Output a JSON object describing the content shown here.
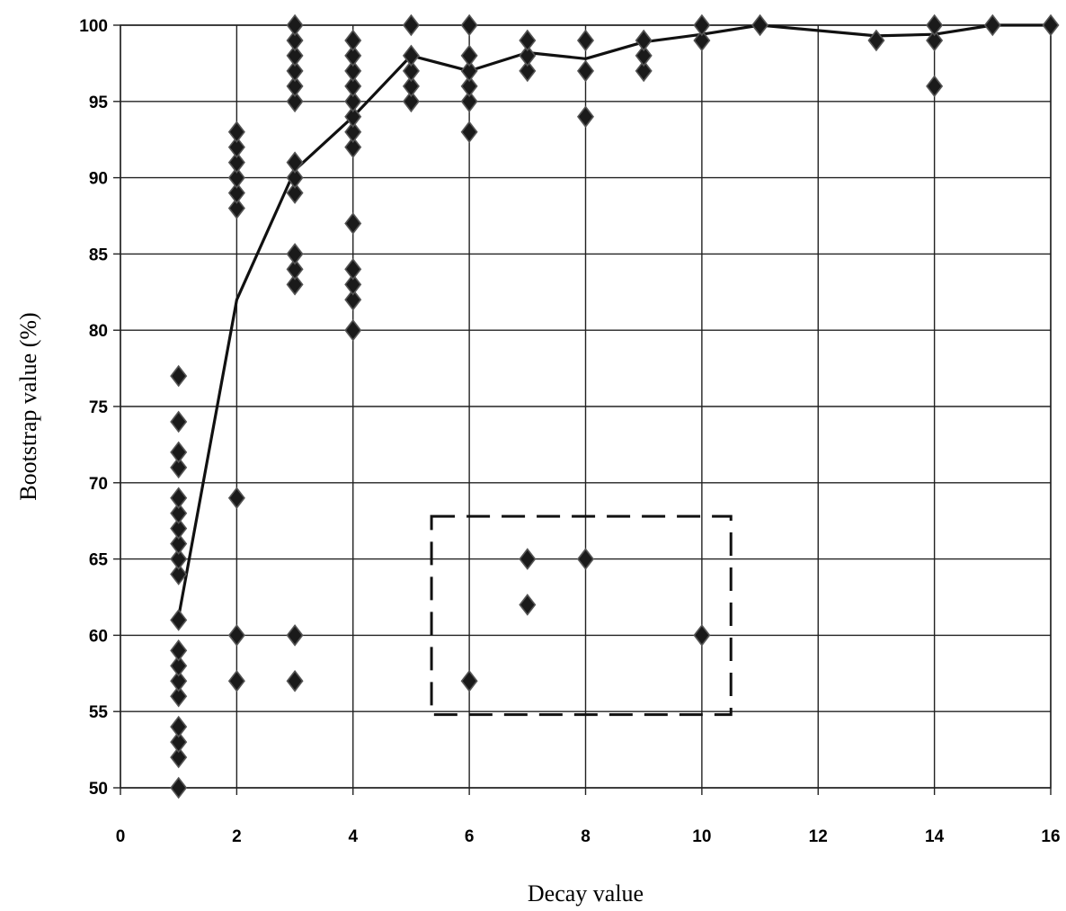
{
  "chart_data": {
    "type": "scatter",
    "title": "",
    "xlabel": "Decay value",
    "ylabel": "Bootstrap value (%)",
    "xlim": [
      0,
      16
    ],
    "ylim": [
      50,
      100
    ],
    "x_ticks": [
      "0",
      "2",
      "4",
      "6",
      "8",
      "10",
      "12",
      "14",
      "16"
    ],
    "y_ticks": [
      "50",
      "55",
      "60",
      "65",
      "70",
      "75",
      "80",
      "85",
      "90",
      "95",
      "100"
    ],
    "grid": true,
    "series": [
      {
        "kind": "scatter",
        "marker": "diamond",
        "color": "#1a1a1a",
        "points": [
          [
            1,
            50
          ],
          [
            1,
            52
          ],
          [
            1,
            53
          ],
          [
            1,
            54
          ],
          [
            1,
            56
          ],
          [
            1,
            57
          ],
          [
            1,
            58
          ],
          [
            1,
            59
          ],
          [
            1,
            61
          ],
          [
            1,
            64
          ],
          [
            1,
            65
          ],
          [
            1,
            66
          ],
          [
            1,
            67
          ],
          [
            1,
            68
          ],
          [
            1,
            69
          ],
          [
            1,
            71
          ],
          [
            1,
            72
          ],
          [
            1,
            74
          ],
          [
            1,
            77
          ],
          [
            2,
            57
          ],
          [
            2,
            60
          ],
          [
            2,
            69
          ],
          [
            2,
            88
          ],
          [
            2,
            89
          ],
          [
            2,
            90
          ],
          [
            2,
            91
          ],
          [
            2,
            92
          ],
          [
            2,
            93
          ],
          [
            3,
            57
          ],
          [
            3,
            60
          ],
          [
            3,
            83
          ],
          [
            3,
            84
          ],
          [
            3,
            85
          ],
          [
            3,
            89
          ],
          [
            3,
            90
          ],
          [
            3,
            91
          ],
          [
            3,
            95
          ],
          [
            3,
            96
          ],
          [
            3,
            97
          ],
          [
            3,
            98
          ],
          [
            3,
            99
          ],
          [
            3,
            100
          ],
          [
            4,
            80
          ],
          [
            4,
            82
          ],
          [
            4,
            83
          ],
          [
            4,
            84
          ],
          [
            4,
            87
          ],
          [
            4,
            92
          ],
          [
            4,
            93
          ],
          [
            4,
            94
          ],
          [
            4,
            95
          ],
          [
            4,
            96
          ],
          [
            4,
            97
          ],
          [
            4,
            98
          ],
          [
            4,
            99
          ],
          [
            5,
            95
          ],
          [
            5,
            96
          ],
          [
            5,
            97
          ],
          [
            5,
            98
          ],
          [
            5,
            100
          ],
          [
            6,
            57
          ],
          [
            6,
            93
          ],
          [
            6,
            95
          ],
          [
            6,
            96
          ],
          [
            6,
            97
          ],
          [
            6,
            98
          ],
          [
            6,
            100
          ],
          [
            7,
            62
          ],
          [
            7,
            65
          ],
          [
            7,
            97
          ],
          [
            7,
            98
          ],
          [
            7,
            99
          ],
          [
            8,
            65
          ],
          [
            8,
            94
          ],
          [
            8,
            97
          ],
          [
            8,
            99
          ],
          [
            9,
            97
          ],
          [
            9,
            98
          ],
          [
            9,
            99
          ],
          [
            10,
            60
          ],
          [
            10,
            99
          ],
          [
            10,
            100
          ],
          [
            11,
            100
          ],
          [
            13,
            99
          ],
          [
            14,
            96
          ],
          [
            14,
            99
          ],
          [
            14,
            100
          ],
          [
            15,
            100
          ],
          [
            16,
            100
          ]
        ]
      },
      {
        "kind": "line",
        "color": "#111111",
        "points": [
          [
            1,
            61.2
          ],
          [
            2,
            82
          ],
          [
            3,
            90.5
          ],
          [
            4,
            94
          ],
          [
            5,
            98
          ],
          [
            6,
            97
          ],
          [
            7,
            98.2
          ],
          [
            8,
            97.8
          ],
          [
            9,
            98.9
          ],
          [
            10,
            99.4
          ],
          [
            11,
            100
          ],
          [
            13,
            99.3
          ],
          [
            14,
            99.4
          ],
          [
            15,
            100
          ],
          [
            16,
            100
          ]
        ]
      }
    ],
    "annotations": [
      {
        "kind": "dashed-box",
        "x": [
          5.35,
          10.5
        ],
        "y": [
          54.8,
          67.8
        ]
      }
    ]
  }
}
